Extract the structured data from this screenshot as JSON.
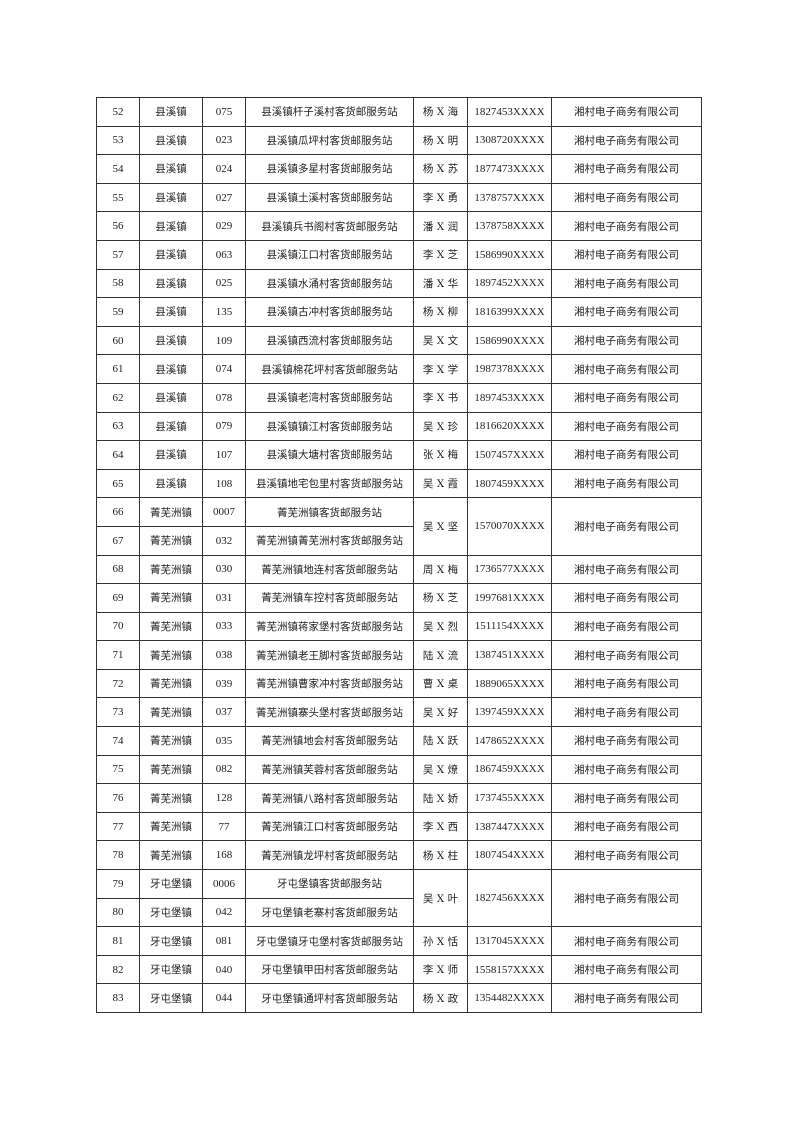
{
  "table": {
    "rows": [
      {
        "no": "52",
        "town": "县溪镇",
        "code": "075",
        "station": "县溪镇杆子溪村客货邮服务站",
        "person": "杨 X 海",
        "phone": "1827453XXXX",
        "company": "湘村电子商务有限公司"
      },
      {
        "no": "53",
        "town": "县溪镇",
        "code": "023",
        "station": "县溪镇瓜坪村客货邮服务站",
        "person": "杨 X 明",
        "phone": "1308720XXXX",
        "company": "湘村电子商务有限公司"
      },
      {
        "no": "54",
        "town": "县溪镇",
        "code": "024",
        "station": "县溪镇多星村客货邮服务站",
        "person": "杨 X 苏",
        "phone": "1877473XXXX",
        "company": "湘村电子商务有限公司"
      },
      {
        "no": "55",
        "town": "县溪镇",
        "code": "027",
        "station": "县溪镇土溪村客货邮服务站",
        "person": "李 X 勇",
        "phone": "1378757XXXX",
        "company": "湘村电子商务有限公司"
      },
      {
        "no": "56",
        "town": "县溪镇",
        "code": "029",
        "station": "县溪镇兵书阁村客货邮服务站",
        "person": "潘 X 润",
        "phone": "1378758XXXX",
        "company": "湘村电子商务有限公司"
      },
      {
        "no": "57",
        "town": "县溪镇",
        "code": "063",
        "station": "县溪镇江口村客货邮服务站",
        "person": "李 X 芝",
        "phone": "1586990XXXX",
        "company": "湘村电子商务有限公司"
      },
      {
        "no": "58",
        "town": "县溪镇",
        "code": "025",
        "station": "县溪镇水涌村客货邮服务站",
        "person": "潘 X 华",
        "phone": "1897452XXXX",
        "company": "湘村电子商务有限公司"
      },
      {
        "no": "59",
        "town": "县溪镇",
        "code": "135",
        "station": "县溪镇古冲村客货邮服务站",
        "person": "杨 X 柳",
        "phone": "1816399XXXX",
        "company": "湘村电子商务有限公司"
      },
      {
        "no": "60",
        "town": "县溪镇",
        "code": "109",
        "station": "县溪镇西流村客货邮服务站",
        "person": "吴 X 文",
        "phone": "1586990XXXX",
        "company": "湘村电子商务有限公司"
      },
      {
        "no": "61",
        "town": "县溪镇",
        "code": "074",
        "station": "县溪镇棉花坪村客货邮服务站",
        "person": "李 X 学",
        "phone": "1987378XXXX",
        "company": "湘村电子商务有限公司"
      },
      {
        "no": "62",
        "town": "县溪镇",
        "code": "078",
        "station": "县溪镇老湾村客货邮服务站",
        "person": "李 X 书",
        "phone": "1897453XXXX",
        "company": "湘村电子商务有限公司"
      },
      {
        "no": "63",
        "town": "县溪镇",
        "code": "079",
        "station": "县溪镇镇江村客货邮服务站",
        "person": "吴 X 珍",
        "phone": "1816620XXXX",
        "company": "湘村电子商务有限公司"
      },
      {
        "no": "64",
        "town": "县溪镇",
        "code": "107",
        "station": "县溪镇大塘村客货邮服务站",
        "person": "张 X 梅",
        "phone": "1507457XXXX",
        "company": "湘村电子商务有限公司"
      },
      {
        "no": "65",
        "town": "县溪镇",
        "code": "108",
        "station": "县溪镇地宅包里村客货邮服务站",
        "person": "吴 X 霞",
        "phone": "1807459XXXX",
        "company": "湘村电子商务有限公司"
      },
      {
        "no": "66",
        "town": "菁芜洲镇",
        "code": "0007",
        "station": "菁芜洲镇客货邮服务站",
        "person": "吴 X 坚",
        "phone": "1570070XXXX",
        "company": "湘村电子商务有限公司",
        "span": 2
      },
      {
        "no": "67",
        "town": "菁芜洲镇",
        "code": "032",
        "station": "菁芜洲镇菁芜洲村客货邮服务站",
        "merged": true
      },
      {
        "no": "68",
        "town": "菁芜洲镇",
        "code": "030",
        "station": "菁芜洲镇地连村客货邮服务站",
        "person": "周 X 梅",
        "phone": "1736577XXXX",
        "company": "湘村电子商务有限公司"
      },
      {
        "no": "69",
        "town": "菁芜洲镇",
        "code": "031",
        "station": "菁芜洲镇车控村客货邮服务站",
        "person": "杨 X 芝",
        "phone": "1997681XXXX",
        "company": "湘村电子商务有限公司"
      },
      {
        "no": "70",
        "town": "菁芜洲镇",
        "code": "033",
        "station": "菁芜洲镇蒋家堡村客货邮服务站",
        "person": "吴 X 烈",
        "phone": "1511154XXXX",
        "company": "湘村电子商务有限公司"
      },
      {
        "no": "71",
        "town": "菁芜洲镇",
        "code": "038",
        "station": "菁芜洲镇老王脚村客货邮服务站",
        "person": "陆 X 流",
        "phone": "1387451XXXX",
        "company": "湘村电子商务有限公司"
      },
      {
        "no": "72",
        "town": "菁芜洲镇",
        "code": "039",
        "station": "菁芜洲镇曹家冲村客货邮服务站",
        "person": "曹 X 桌",
        "phone": "1889065XXXX",
        "company": "湘村电子商务有限公司"
      },
      {
        "no": "73",
        "town": "菁芜洲镇",
        "code": "037",
        "station": "菁芜洲镇寨头堡村客货邮服务站",
        "person": "吴 X 好",
        "phone": "1397459XXXX",
        "company": "湘村电子商务有限公司"
      },
      {
        "no": "74",
        "town": "菁芜洲镇",
        "code": "035",
        "station": "菁芜洲镇地会村客货邮服务站",
        "person": "陆 X 跃",
        "phone": "1478652XXXX",
        "company": "湘村电子商务有限公司"
      },
      {
        "no": "75",
        "town": "菁芜洲镇",
        "code": "082",
        "station": "菁芜洲镇芙蓉村客货邮服务站",
        "person": "吴 X 燎",
        "phone": "1867459XXXX",
        "company": "湘村电子商务有限公司"
      },
      {
        "no": "76",
        "town": "菁芜洲镇",
        "code": "128",
        "station": "菁芜洲镇八路村客货邮服务站",
        "person": "陆 X 娇",
        "phone": "1737455XXXX",
        "company": "湘村电子商务有限公司"
      },
      {
        "no": "77",
        "town": "菁芜洲镇",
        "code": "77",
        "station": "菁芜洲镇江口村客货邮服务站",
        "person": "李 X 西",
        "phone": "1387447XXXX",
        "company": "湘村电子商务有限公司"
      },
      {
        "no": "78",
        "town": "菁芜洲镇",
        "code": "168",
        "station": "菁芜洲镇龙坪村客货邮服务站",
        "person": "杨 X 柱",
        "phone": "1807454XXXX",
        "company": "湘村电子商务有限公司"
      },
      {
        "no": "79",
        "town": "牙屯堡镇",
        "code": "0006",
        "station": "牙屯堡镇客货邮服务站",
        "person": "吴 X 叶",
        "phone": "1827456XXXX",
        "company": "湘村电子商务有限公司",
        "span": 2
      },
      {
        "no": "80",
        "town": "牙屯堡镇",
        "code": "042",
        "station": "牙屯堡镇老寨村客货邮服务站",
        "merged": true
      },
      {
        "no": "81",
        "town": "牙屯堡镇",
        "code": "081",
        "station": "牙屯堡镇牙屯堡村客货邮服务站",
        "person": "孙 X 恬",
        "phone": "1317045XXXX",
        "company": "湘村电子商务有限公司"
      },
      {
        "no": "82",
        "town": "牙屯堡镇",
        "code": "040",
        "station": "牙屯堡镇甲田村客货邮服务站",
        "person": "李 X 师",
        "phone": "1558157XXXX",
        "company": "湘村电子商务有限公司"
      },
      {
        "no": "83",
        "town": "牙屯堡镇",
        "code": "044",
        "station": "牙屯堡镇通坪村客货邮服务站",
        "person": "杨 X 政",
        "phone": "1354482XXXX",
        "company": "湘村电子商务有限公司"
      }
    ]
  }
}
